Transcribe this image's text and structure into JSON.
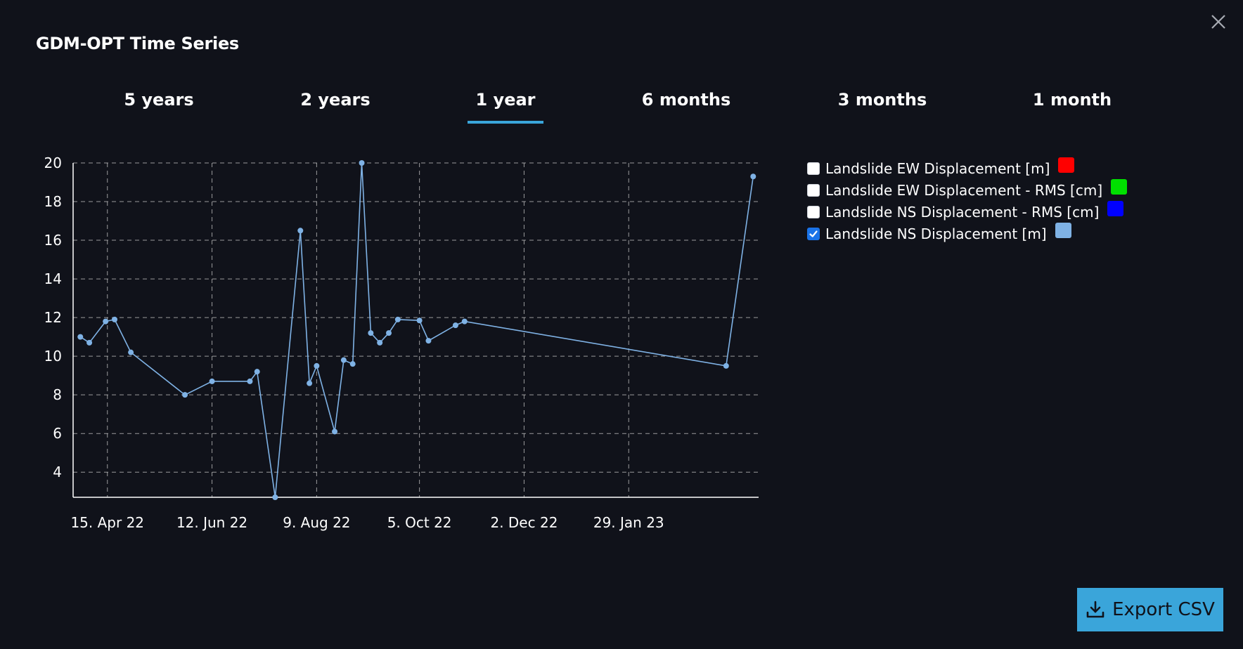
{
  "window": {
    "title": "GDM-OPT Time Series"
  },
  "tabs": [
    {
      "label": "5 years",
      "selected": false
    },
    {
      "label": "2 years",
      "selected": false
    },
    {
      "label": "1 year",
      "selected": true
    },
    {
      "label": "6 months",
      "selected": false
    },
    {
      "label": "3 months",
      "selected": false
    },
    {
      "label": "1 month",
      "selected": false
    }
  ],
  "colors": {
    "background": "#10121a",
    "accent": "#3aa5da",
    "series_line": "#7fb2e5",
    "grid": "#c8c8c8"
  },
  "legend": [
    {
      "label": "Landslide EW Displacement [m]",
      "checked": false,
      "color": "#ff0000"
    },
    {
      "label": "Landslide EW Displacement - RMS [cm]",
      "checked": false,
      "color": "#00e000"
    },
    {
      "label": "Landslide NS Displacement - RMS [cm]",
      "checked": false,
      "color": "#0000ff"
    },
    {
      "label": "Landslide NS Displacement [m]",
      "checked": true,
      "color": "#7fb2e5"
    }
  ],
  "export": {
    "label": "Export CSV",
    "icon": "download-icon"
  },
  "close": {
    "icon": "close-icon"
  },
  "chart_data": {
    "type": "line",
    "title": "",
    "xlabel": "",
    "ylabel": "",
    "grid": true,
    "x_type": "date",
    "xlim": [
      "2022-03-27",
      "2023-04-11"
    ],
    "ylim": [
      2.7,
      20
    ],
    "y_ticks": [
      4,
      6,
      8,
      10,
      12,
      14,
      16,
      18,
      20
    ],
    "x_ticks": [
      "2022-04-15",
      "2022-06-12",
      "2022-08-09",
      "2022-10-05",
      "2022-12-02",
      "2023-01-29"
    ],
    "x_tick_labels": [
      "15. Apr 22",
      "12. Jun 22",
      "9. Aug 22",
      "5. Oct 22",
      "2. Dec 22",
      "29. Jan 23"
    ],
    "series": [
      {
        "color": "#7fb2e5",
        "points": [
          {
            "x": "2022-03-31",
            "y": 11.0
          },
          {
            "x": "2022-04-05",
            "y": 10.7
          },
          {
            "x": "2022-04-14",
            "y": 11.8
          },
          {
            "x": "2022-04-19",
            "y": 11.9
          },
          {
            "x": "2022-04-28",
            "y": 10.2
          },
          {
            "x": "2022-05-28",
            "y": 8.0
          },
          {
            "x": "2022-06-12",
            "y": 8.7
          },
          {
            "x": "2022-07-03",
            "y": 8.7
          },
          {
            "x": "2022-07-07",
            "y": 9.2
          },
          {
            "x": "2022-07-17",
            "y": 2.7
          },
          {
            "x": "2022-07-31",
            "y": 16.5
          },
          {
            "x": "2022-08-05",
            "y": 8.6
          },
          {
            "x": "2022-08-09",
            "y": 9.5
          },
          {
            "x": "2022-08-19",
            "y": 6.1
          },
          {
            "x": "2022-08-24",
            "y": 9.8
          },
          {
            "x": "2022-08-29",
            "y": 9.6
          },
          {
            "x": "2022-09-03",
            "y": 20.0
          },
          {
            "x": "2022-09-08",
            "y": 11.2
          },
          {
            "x": "2022-09-13",
            "y": 10.7
          },
          {
            "x": "2022-09-18",
            "y": 11.2
          },
          {
            "x": "2022-09-23",
            "y": 11.9
          },
          {
            "x": "2022-10-05",
            "y": 11.85
          },
          {
            "x": "2022-10-10",
            "y": 10.8
          },
          {
            "x": "2022-10-25",
            "y": 11.6
          },
          {
            "x": "2022-10-30",
            "y": 11.8
          },
          {
            "x": "2023-03-24",
            "y": 9.5
          },
          {
            "x": "2023-04-08",
            "y": 19.3
          }
        ]
      }
    ]
  }
}
